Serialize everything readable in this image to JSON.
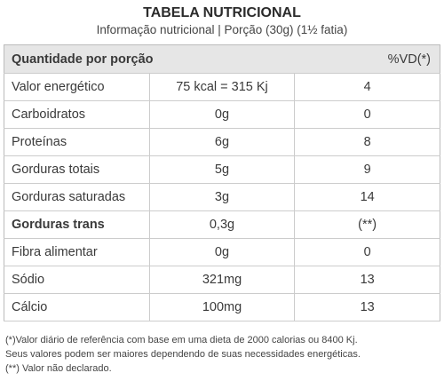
{
  "header": {
    "title": "TABELA NUTRICIONAL",
    "subtitle": "Informação nutricional | Porção (30g) (1½ fatia)"
  },
  "table": {
    "header": [
      "Quantidade por porção",
      "%VD(*)"
    ],
    "rows": [
      [
        "Valor energético",
        "75 kcal = 315 Kj",
        "4"
      ],
      [
        "Carboidratos",
        "0g",
        "0"
      ],
      [
        "Proteínas",
        "6g",
        "8"
      ],
      [
        "Gorduras totais",
        "5g",
        "9"
      ],
      [
        "Gorduras saturadas",
        "3g",
        "14"
      ],
      [
        "Gorduras trans",
        "0,3g",
        "(**)"
      ],
      [
        "Fibra alimentar",
        "0g",
        "0"
      ],
      [
        "Sódio",
        "321mg",
        "13"
      ],
      [
        "Cálcio",
        "100mg",
        "13"
      ]
    ]
  },
  "footnotes": [
    "(*)Valor diário de referência com base em uma dieta de 2000 calorias ou 8400 Kj.",
    "Seus valores podem ser maiores dependendo de suas necessidades energéticas.",
    "(**) Valor não declarado."
  ]
}
